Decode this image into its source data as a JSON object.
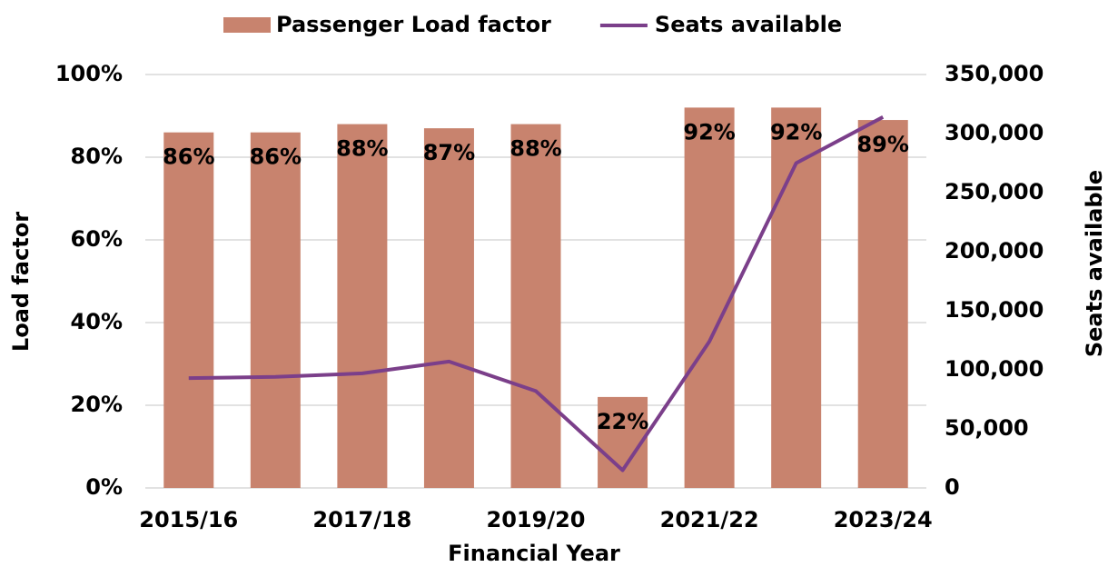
{
  "chart_data": {
    "type": "bar_line",
    "legend": "top",
    "grid": true,
    "x_label": "Financial Year",
    "y_label": "Load factor",
    "y2_label": "Seats available",
    "categories": [
      "2015/16",
      null,
      "2017/18",
      null,
      "2019/20",
      null,
      "2021/22",
      null,
      "2023/24"
    ],
    "ylim": [
      0,
      100
    ],
    "yticks": [
      {
        "value": 0,
        "label": "0%"
      },
      {
        "value": 20,
        "label": "20%"
      },
      {
        "value": 40,
        "label": "40%"
      },
      {
        "value": 60,
        "label": "60%"
      },
      {
        "value": 80,
        "label": "80%"
      },
      {
        "value": 100,
        "label": "100%"
      }
    ],
    "y2lim": [
      0,
      350000
    ],
    "y2ticks": [
      0,
      {
        "value": 50000,
        "label": "50,000"
      },
      {
        "value": 100000,
        "label": "100,000"
      },
      {
        "value": 150000,
        "label": "150,000"
      },
      {
        "value": 200000,
        "label": "200,000"
      },
      {
        "value": 250000,
        "label": "250,000"
      },
      {
        "value": 300000,
        "label": "300,000"
      },
      {
        "value": 350000,
        "label": "350,000"
      }
    ],
    "series": [
      {
        "name": "Passenger Load factor",
        "kind": "bar",
        "color": "#c8836e",
        "values": [
          86,
          86,
          88,
          87,
          88,
          22,
          92,
          92,
          89
        ],
        "value_labels": [
          "86%",
          "86%",
          "88%",
          "87%",
          "88%",
          "22%",
          "92%",
          "92%",
          "89%"
        ]
      },
      {
        "name": "Seats available",
        "kind": "line",
        "axis": "y2",
        "color": "#7b3f8a",
        "values": [
          93000,
          94000,
          97000,
          107000,
          82000,
          15000,
          124000,
          275000,
          314000
        ]
      }
    ]
  }
}
